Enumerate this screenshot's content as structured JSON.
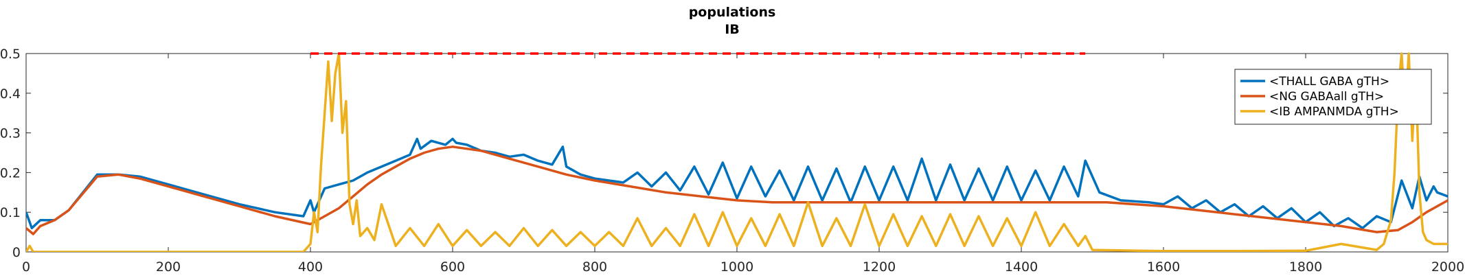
{
  "chart_data": {
    "type": "line",
    "title": "populations",
    "subtitle": "IB",
    "xlabel": "",
    "ylabel": "",
    "xlim": [
      0,
      2000
    ],
    "ylim": [
      0,
      0.5
    ],
    "xticks": [
      0,
      200,
      400,
      600,
      800,
      1000,
      1200,
      1400,
      1600,
      1800,
      2000
    ],
    "xtick_labels": [
      "0",
      "200",
      "400",
      "600",
      "800",
      "1000",
      "1200",
      "1400",
      "1600",
      "1800",
      "2000"
    ],
    "yticks": [
      0,
      0.1,
      0.2,
      0.3,
      0.4,
      0.5
    ],
    "ytick_labels": [
      "0",
      "0.1",
      "0.2",
      "0.3",
      "0.4",
      "0.5"
    ],
    "grid": false,
    "legend_position": "top-right",
    "reference_line": {
      "style": "dashed",
      "color": "#ff0000",
      "y": 0.5,
      "x_start": 400,
      "x_end": 1490
    },
    "series": [
      {
        "name": "<THALL GABA gTH>",
        "color": "#0072bd",
        "x": [
          0,
          8,
          20,
          40,
          60,
          100,
          130,
          160,
          200,
          250,
          300,
          350,
          390,
          400,
          405,
          420,
          440,
          460,
          480,
          500,
          520,
          540,
          550,
          555,
          570,
          590,
          600,
          605,
          620,
          640,
          660,
          680,
          700,
          720,
          740,
          755,
          760,
          780,
          800,
          820,
          840,
          860,
          880,
          900,
          920,
          940,
          960,
          980,
          1000,
          1020,
          1040,
          1060,
          1080,
          1100,
          1120,
          1140,
          1160,
          1180,
          1200,
          1220,
          1240,
          1260,
          1280,
          1300,
          1320,
          1340,
          1360,
          1380,
          1400,
          1420,
          1440,
          1460,
          1480,
          1490,
          1510,
          1540,
          1580,
          1600,
          1620,
          1640,
          1660,
          1680,
          1700,
          1720,
          1740,
          1760,
          1780,
          1800,
          1820,
          1840,
          1860,
          1880,
          1900,
          1920,
          1935,
          1950,
          1960,
          1970,
          1980,
          1985,
          2000
        ],
        "y": [
          0.1,
          0.06,
          0.08,
          0.08,
          0.105,
          0.195,
          0.195,
          0.19,
          0.17,
          0.145,
          0.12,
          0.1,
          0.09,
          0.13,
          0.1,
          0.16,
          0.17,
          0.18,
          0.2,
          0.215,
          0.23,
          0.245,
          0.285,
          0.26,
          0.28,
          0.27,
          0.285,
          0.275,
          0.27,
          0.255,
          0.25,
          0.24,
          0.245,
          0.23,
          0.22,
          0.265,
          0.215,
          0.195,
          0.185,
          0.18,
          0.175,
          0.2,
          0.165,
          0.2,
          0.155,
          0.215,
          0.145,
          0.225,
          0.135,
          0.215,
          0.14,
          0.205,
          0.13,
          0.215,
          0.13,
          0.21,
          0.125,
          0.215,
          0.13,
          0.215,
          0.13,
          0.235,
          0.13,
          0.22,
          0.13,
          0.21,
          0.13,
          0.215,
          0.13,
          0.205,
          0.13,
          0.215,
          0.14,
          0.23,
          0.15,
          0.13,
          0.125,
          0.12,
          0.14,
          0.11,
          0.13,
          0.1,
          0.12,
          0.09,
          0.115,
          0.085,
          0.11,
          0.075,
          0.1,
          0.065,
          0.085,
          0.06,
          0.09,
          0.075,
          0.18,
          0.11,
          0.19,
          0.13,
          0.165,
          0.15,
          0.14
        ]
      },
      {
        "name": "<NG GABAall gTH>",
        "color": "#d95319",
        "x": [
          0,
          10,
          20,
          40,
          60,
          100,
          130,
          160,
          200,
          250,
          300,
          350,
          400,
          420,
          440,
          460,
          480,
          500,
          520,
          540,
          560,
          580,
          600,
          620,
          640,
          680,
          720,
          760,
          800,
          850,
          900,
          950,
          1000,
          1050,
          1100,
          1150,
          1200,
          1250,
          1300,
          1350,
          1400,
          1450,
          1490,
          1520,
          1560,
          1600,
          1650,
          1700,
          1750,
          1800,
          1850,
          1900,
          1930,
          1950,
          1970,
          2000
        ],
        "y": [
          0.06,
          0.045,
          0.065,
          0.08,
          0.105,
          0.19,
          0.195,
          0.185,
          0.165,
          0.14,
          0.115,
          0.09,
          0.07,
          0.09,
          0.11,
          0.14,
          0.17,
          0.195,
          0.215,
          0.235,
          0.25,
          0.26,
          0.265,
          0.26,
          0.255,
          0.235,
          0.215,
          0.195,
          0.18,
          0.165,
          0.15,
          0.14,
          0.13,
          0.125,
          0.125,
          0.125,
          0.125,
          0.125,
          0.125,
          0.125,
          0.125,
          0.125,
          0.125,
          0.125,
          0.12,
          0.115,
          0.105,
          0.095,
          0.085,
          0.075,
          0.065,
          0.05,
          0.055,
          0.075,
          0.1,
          0.13
        ]
      },
      {
        "name": "<IB AMPANMDA gTH>",
        "color": "#edb120",
        "x": [
          0,
          5,
          10,
          200,
          390,
          400,
          405,
          410,
          415,
          420,
          425,
          430,
          435,
          440,
          445,
          450,
          455,
          460,
          465,
          470,
          480,
          490,
          500,
          520,
          540,
          560,
          580,
          600,
          620,
          640,
          660,
          680,
          700,
          720,
          740,
          760,
          780,
          800,
          820,
          840,
          860,
          880,
          900,
          920,
          940,
          960,
          980,
          1000,
          1020,
          1040,
          1060,
          1080,
          1100,
          1120,
          1140,
          1160,
          1180,
          1200,
          1220,
          1240,
          1260,
          1280,
          1300,
          1320,
          1340,
          1360,
          1380,
          1400,
          1420,
          1440,
          1460,
          1480,
          1490,
          1500,
          1600,
          1700,
          1800,
          1850,
          1900,
          1910,
          1920,
          1925,
          1930,
          1935,
          1940,
          1945,
          1950,
          1955,
          1960,
          1965,
          1970,
          1980,
          2000
        ],
        "y": [
          0.0,
          0.015,
          0.0,
          0.0,
          0.0,
          0.02,
          0.1,
          0.05,
          0.22,
          0.35,
          0.48,
          0.33,
          0.45,
          0.5,
          0.3,
          0.38,
          0.12,
          0.07,
          0.13,
          0.04,
          0.06,
          0.03,
          0.12,
          0.015,
          0.06,
          0.015,
          0.07,
          0.015,
          0.055,
          0.015,
          0.05,
          0.015,
          0.06,
          0.015,
          0.055,
          0.015,
          0.05,
          0.015,
          0.05,
          0.015,
          0.085,
          0.015,
          0.06,
          0.015,
          0.095,
          0.015,
          0.1,
          0.015,
          0.085,
          0.015,
          0.095,
          0.015,
          0.125,
          0.015,
          0.085,
          0.015,
          0.12,
          0.015,
          0.095,
          0.015,
          0.09,
          0.015,
          0.095,
          0.015,
          0.09,
          0.015,
          0.085,
          0.015,
          0.1,
          0.015,
          0.07,
          0.015,
          0.04,
          0.005,
          0.002,
          0.002,
          0.003,
          0.02,
          0.005,
          0.02,
          0.08,
          0.2,
          0.4,
          0.5,
          0.35,
          0.5,
          0.28,
          0.45,
          0.15,
          0.05,
          0.03,
          0.02,
          0.02
        ]
      }
    ]
  }
}
